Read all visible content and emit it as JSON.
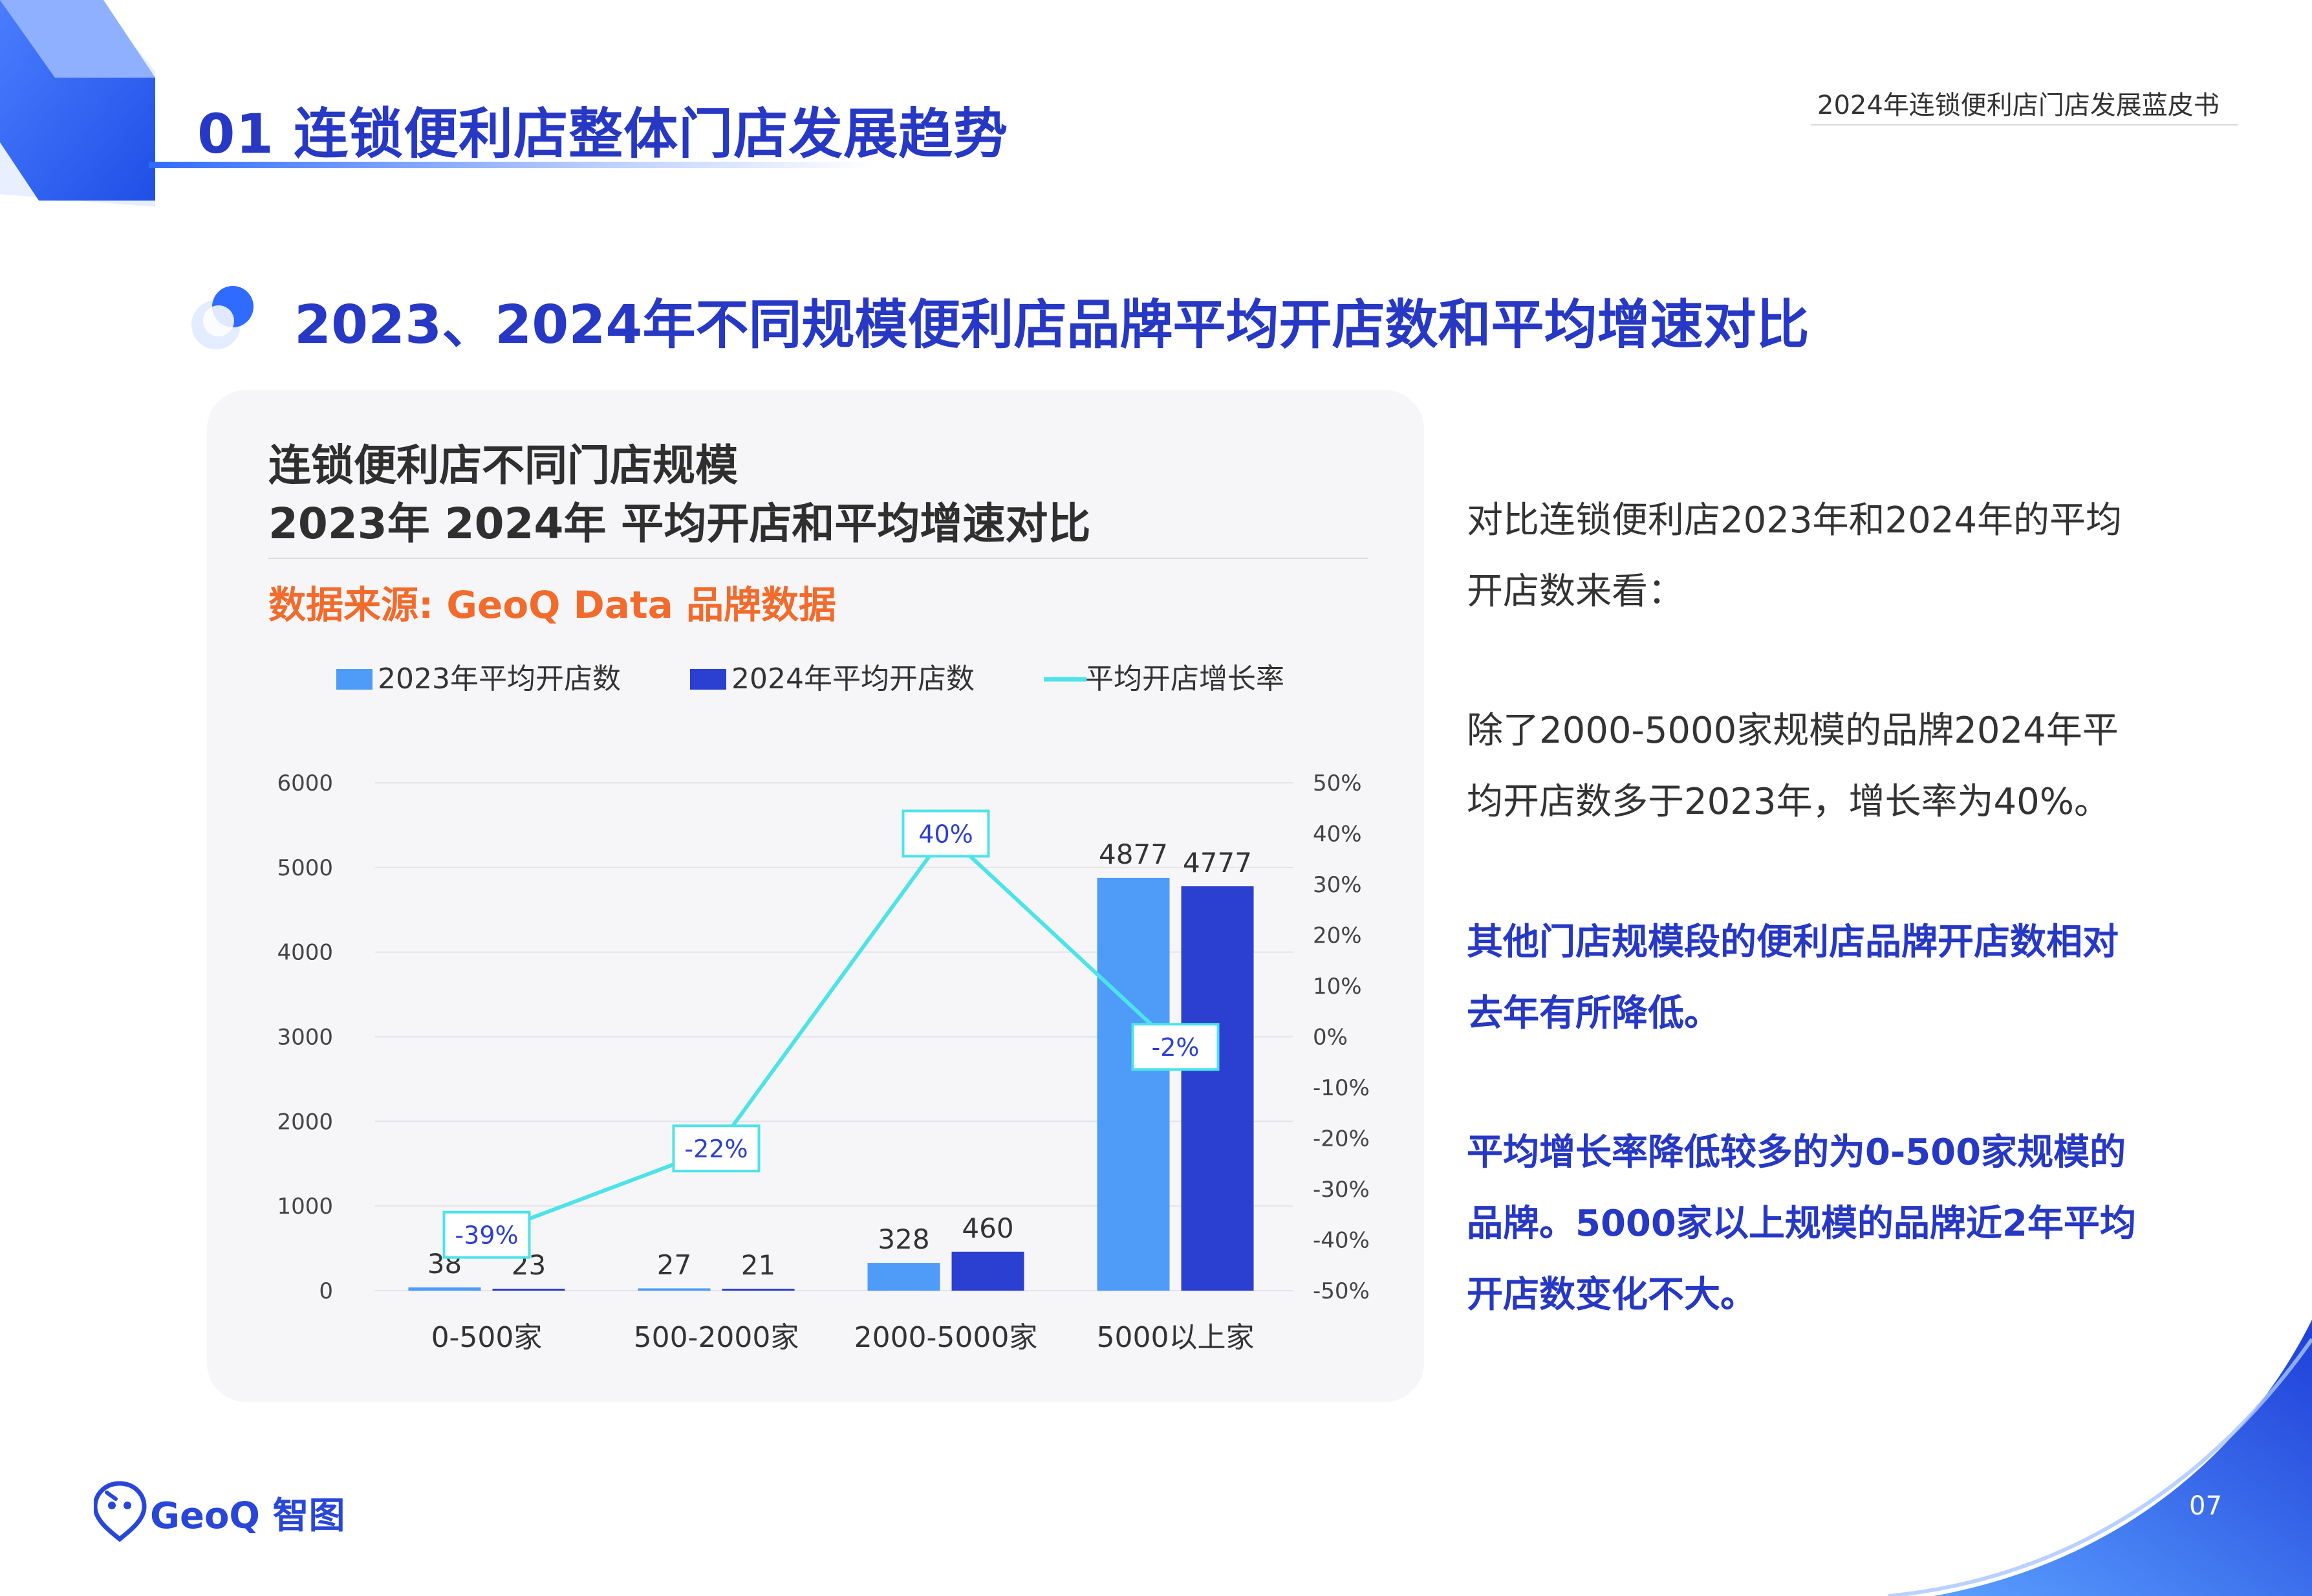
{
  "header": {
    "section_title": "01 连锁便利店整体门店发展趋势",
    "report_title": "2024年连锁便利店门店发展蓝皮书"
  },
  "slide_heading": "2023、2024年不同规模便利店品牌平均开店数和平均增速对比",
  "card": {
    "title_line1": "连锁便利店不同门店规模",
    "title_line2": "2023年 2024年 平均开店和平均增速对比",
    "source": "数据来源: GeoQ Data 品牌数据"
  },
  "chart_data": {
    "type": "bar",
    "categories": [
      "0-500家",
      "500-2000家",
      "2000-5000家",
      "5000以上家"
    ],
    "series": [
      {
        "name": "2023年平均开店数",
        "type": "bar",
        "axis": "left",
        "color": "#4f9bf8",
        "values": [
          38,
          27,
          328,
          4877
        ]
      },
      {
        "name": "2024年平均开店数",
        "type": "bar",
        "axis": "left",
        "color": "#2b3fd1",
        "values": [
          23,
          21,
          460,
          4777
        ]
      },
      {
        "name": "平均开店增长率",
        "type": "line",
        "axis": "right",
        "color": "#4de3e8",
        "values": [
          -39,
          -22,
          40,
          -2
        ],
        "labels": [
          "-39%",
          "-22%",
          "40%",
          "-2%"
        ]
      }
    ],
    "y_left": {
      "min": 0,
      "max": 6000,
      "ticks": [
        "0",
        "1000",
        "2000",
        "3000",
        "4000",
        "5000",
        "6000"
      ]
    },
    "y_right": {
      "min": -50,
      "max": 50,
      "ticks": [
        "-50%",
        "-40%",
        "-30%",
        "-20%",
        "-10%",
        "0%",
        "10%",
        "20%",
        "30%",
        "40%",
        "50%"
      ]
    },
    "legend_position": "top",
    "grid": true
  },
  "side_text": {
    "para1": [
      "对比连锁便利店2023年和2024年的平均",
      "开店数来看："
    ],
    "para2": [
      "除了2000-5000家规模的品牌2024年平",
      "均开店数多于2023年，增长率为40%。"
    ],
    "para3": [
      "其他门店规模段的便利店品牌开店数相对",
      "去年有所降低。"
    ],
    "para4": [
      "平均增长率降低较多的为0-500家规模的",
      "品牌。5000家以上规模的品牌近2年平均",
      "开店数变化不大。"
    ]
  },
  "footer": {
    "logo_text": "GeoQ 智图",
    "page_number": "07"
  },
  "colors": {
    "brand_blue": "#2638c4",
    "accent_orange": "#f26b2c",
    "bar_2023": "#4f9bf8",
    "bar_2024": "#2b3fd1",
    "line_growth": "#4de3e8"
  }
}
